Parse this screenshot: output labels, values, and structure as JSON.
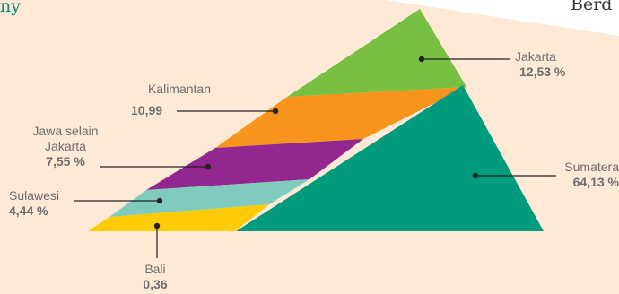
{
  "corner_left": "ny",
  "corner_right": "Berd",
  "colors": {
    "background": "#fde9d5",
    "jakarta": "#77c043",
    "kalimantan": "#f7941d",
    "jawa": "#92278f",
    "sulawesi": "#7fcbbd",
    "bali": "#ffcb05",
    "sumatera": "#009b7d",
    "leader": "#222222",
    "label_text": "#6e6e6e"
  },
  "segments": [
    {
      "id": "jakarta",
      "name": "Jakarta",
      "value": "12,53 %"
    },
    {
      "id": "kalimantan",
      "name": "Kalimantan",
      "value": "10,99"
    },
    {
      "id": "jawa",
      "name_line1": "Jawa selain",
      "name_line2": "Jakarta",
      "value": "7,55 %"
    },
    {
      "id": "sulawesi",
      "name": "Sulawesi",
      "value": "4,44 %"
    },
    {
      "id": "bali",
      "name": "Bali",
      "value": "0,36"
    },
    {
      "id": "sumatera",
      "name": "Sumatera",
      "value": "64,13 %"
    }
  ]
}
